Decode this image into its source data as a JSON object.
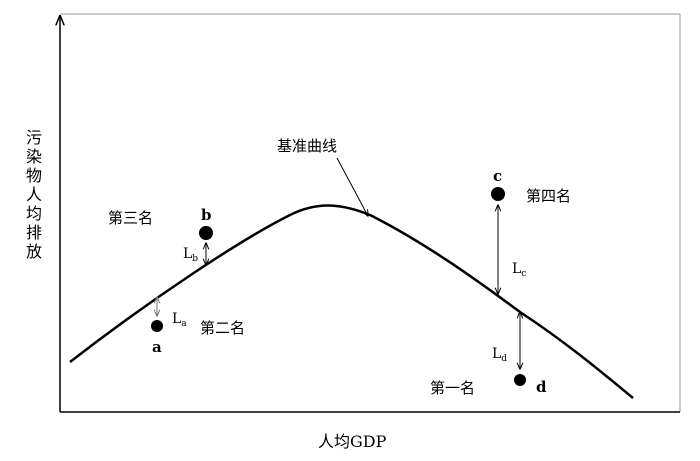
{
  "axes": {
    "y_label": "污染物人均排放",
    "x_label": "人均GDP"
  },
  "curve": {
    "label": "基准曲线"
  },
  "points": [
    {
      "id": "a",
      "rank": "第二名",
      "distance_label": "L",
      "distance_sub": "a"
    },
    {
      "id": "b",
      "rank": "第三名",
      "distance_label": "L",
      "distance_sub": "b"
    },
    {
      "id": "c",
      "rank": "第四名",
      "distance_label": "L",
      "distance_sub": "c"
    },
    {
      "id": "d",
      "rank": "第一名",
      "distance_label": "L",
      "distance_sub": "d"
    }
  ]
}
